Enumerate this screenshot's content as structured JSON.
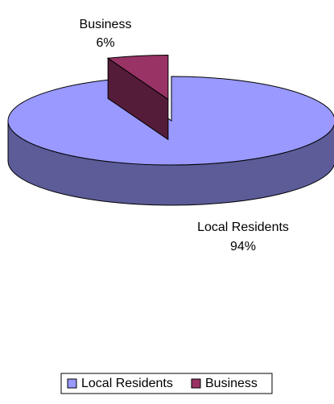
{
  "chart_data": {
    "type": "pie",
    "categories": [
      "Local Residents",
      "Business"
    ],
    "values": [
      94,
      6
    ],
    "value_labels": [
      "94%",
      "6%"
    ],
    "colors": [
      "#9999ff",
      "#993366"
    ],
    "legend": "bottom"
  }
}
